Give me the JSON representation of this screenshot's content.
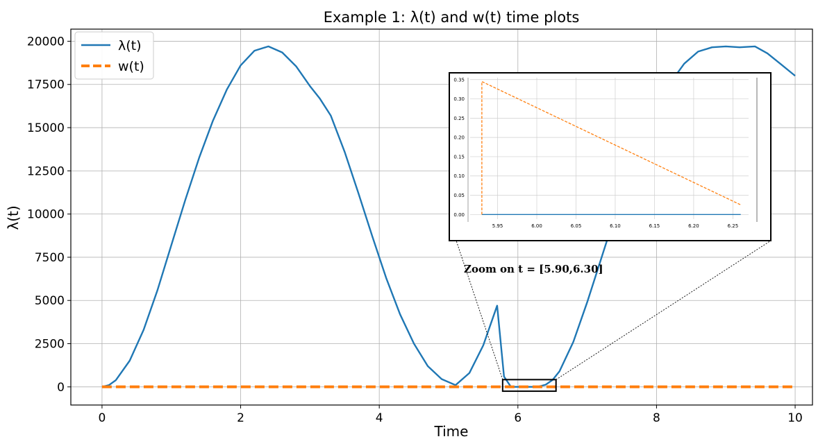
{
  "chart_data": {
    "type": "line",
    "title": "Example 1: λ(t) and w(t) time plots",
    "xlabel": "Time",
    "ylabel": "λ(t)",
    "xlim": [
      -0.45,
      10.25
    ],
    "ylim": [
      -1050,
      20700
    ],
    "xticks": [
      0,
      2,
      4,
      6,
      8,
      10
    ],
    "yticks": [
      0,
      2500,
      5000,
      7500,
      10000,
      12500,
      15000,
      17500,
      20000
    ],
    "grid": true,
    "legend_position": "top-left",
    "series": [
      {
        "name": "λ(t)",
        "color": "#1f77b4",
        "style": "solid",
        "x": [
          0,
          0.1,
          0.2,
          0.4,
          0.6,
          0.8,
          1.0,
          1.2,
          1.4,
          1.6,
          1.8,
          2.0,
          2.2,
          2.4,
          2.6,
          2.8,
          3.0,
          3.14,
          3.3,
          3.5,
          3.7,
          3.9,
          4.1,
          4.3,
          4.5,
          4.7,
          4.9,
          5.1,
          5.3,
          5.5,
          5.7,
          5.8,
          5.9,
          6.0,
          6.1,
          6.2,
          6.28,
          6.4,
          6.5,
          6.6,
          6.8,
          7.0,
          7.2,
          7.4,
          7.6,
          7.8,
          8.0,
          8.2,
          8.4,
          8.6,
          8.8,
          9.0,
          9.2,
          9.42,
          9.6,
          9.8,
          10.0
        ],
        "y": [
          0,
          100,
          390,
          1520,
          3300,
          5600,
          8200,
          10800,
          13250,
          15400,
          17200,
          18600,
          19450,
          19700,
          19350,
          18550,
          17400,
          16700,
          15700,
          13600,
          11200,
          8700,
          6300,
          4200,
          2500,
          1200,
          450,
          100,
          800,
          2400,
          4700,
          600,
          0,
          0,
          0,
          0,
          0,
          120,
          400,
          900,
          2600,
          4900,
          7400,
          9900,
          12300,
          14400,
          16200,
          17600,
          18700,
          19400,
          19650,
          19700,
          19650,
          19700,
          19300,
          18650,
          18000
        ]
      },
      {
        "name": "w(t)",
        "color": "#ff7f0e",
        "style": "dashed",
        "x": [
          0,
          10
        ],
        "y": [
          0,
          0
        ]
      }
    ],
    "inset": {
      "xlim": [
        5.915,
        6.27
      ],
      "ylim": [
        -0.012,
        0.355
      ],
      "xticks": [
        5.95,
        6.0,
        6.05,
        6.1,
        6.15,
        6.2,
        6.25
      ],
      "xtick_labels": [
        "5.95",
        "6.00",
        "6.05",
        "6.10",
        "6.15",
        "6.20",
        "6.25"
      ],
      "yticks": [
        0.0,
        0.05,
        0.1,
        0.15,
        0.2,
        0.25,
        0.3,
        0.35
      ],
      "ytick_labels": [
        "0.00",
        "0.05",
        "0.10",
        "0.15",
        "0.20",
        "0.25",
        "0.30",
        "0.35"
      ],
      "series": [
        {
          "name": "λ(t)",
          "color": "#1f77b4",
          "x": [
            5.93,
            6.26
          ],
          "y": [
            0,
            0
          ]
        },
        {
          "name": "w(t)",
          "color": "#ff7f0e",
          "x": [
            5.93,
            5.93,
            6.26
          ],
          "y": [
            0,
            0.345,
            0.025
          ]
        }
      ]
    },
    "annotation": "Zoom on t = [5.90,6.30]"
  }
}
